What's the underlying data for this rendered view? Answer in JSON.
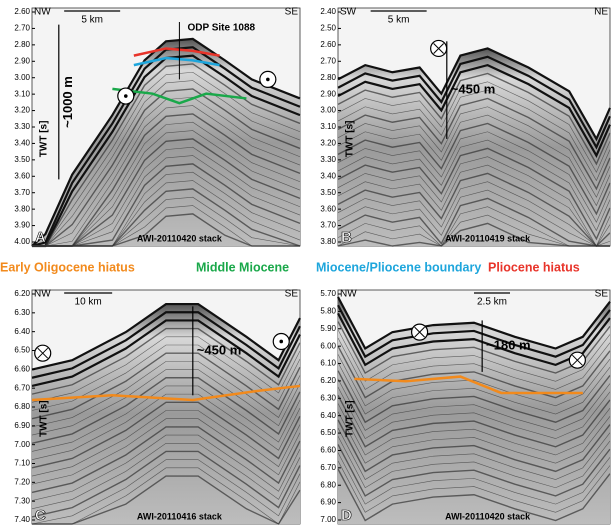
{
  "legend": [
    {
      "label": "Early Oligocene hiatus",
      "color": "#f28a1c"
    },
    {
      "label": "Middle Miocene",
      "color": "#1aa84a"
    },
    {
      "label": "Miocene/Pliocene boundary",
      "color": "#1ea6dc"
    },
    {
      "label": "Pliocene hiatus",
      "color": "#e8342a"
    }
  ],
  "panels": [
    {
      "letter": "A",
      "axis_label": "TWT [s]",
      "left_dir": "NW",
      "right_dir": "SE",
      "scale": "5 km",
      "thickness": "~1000 m",
      "site": "ODP Site 1088",
      "profile": "AWI-20110420 stack",
      "ticks": [
        "2.60",
        "2.70",
        "2.80",
        "2.90",
        "3.00",
        "3.10",
        "3.20",
        "3.30",
        "3.40",
        "3.50",
        "3.60",
        "3.70",
        "3.80",
        "3.90",
        "4.00"
      ]
    },
    {
      "letter": "B",
      "axis_label": "TWT [s]",
      "left_dir": "SW",
      "right_dir": "NE",
      "scale": "5 km",
      "thickness": "~450 m",
      "profile": "AWI-20110419 stack",
      "ticks": [
        "2.40",
        "2.50",
        "2.60",
        "2.70",
        "2.80",
        "2.90",
        "3.00",
        "3.10",
        "3.20",
        "3.30",
        "3.40",
        "3.50",
        "3.60",
        "3.70",
        "3.80"
      ]
    },
    {
      "letter": "C",
      "axis_label": "TWT [s]",
      "left_dir": "NW",
      "right_dir": "SE",
      "scale": "10 km",
      "thickness": "~450 m",
      "profile": "AWI-20110416 stack",
      "ticks": [
        "6.20",
        "6.30",
        "6.40",
        "6.50",
        "6.60",
        "6.70",
        "6.80",
        "6.90",
        "7.00",
        "7.10",
        "7.20",
        "7.30",
        "7.40"
      ]
    },
    {
      "letter": "D",
      "axis_label": "TWT [s]",
      "left_dir": "NW",
      "right_dir": "SE",
      "scale": "2.5 km",
      "thickness": "~180 m",
      "profile": "AWI-20110420 stack",
      "ticks": [
        "5.70",
        "5.80",
        "5.90",
        "6.00",
        "6.10",
        "6.20",
        "6.30",
        "6.40",
        "6.50",
        "6.60",
        "6.70",
        "6.80",
        "6.90",
        "7.00"
      ]
    }
  ]
}
